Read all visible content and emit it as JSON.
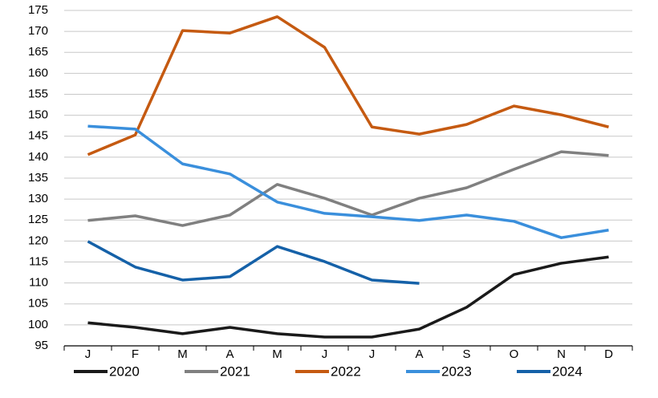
{
  "chart_data": {
    "type": "line",
    "categories": [
      "J",
      "F",
      "M",
      "A",
      "M",
      "J",
      "J",
      "A",
      "S",
      "O",
      "N",
      "D"
    ],
    "series": [
      {
        "name": "2020",
        "color": "#1a1a1a",
        "values": [
          100.5,
          99.4,
          97.9,
          99.4,
          97.9,
          97.1,
          97.1,
          99.0,
          104.2,
          112.0,
          114.7,
          116.2
        ]
      },
      {
        "name": "2021",
        "color": "#808080",
        "values": [
          124.9,
          126.0,
          123.7,
          126.2,
          133.5,
          130.2,
          126.2,
          130.2,
          132.7,
          137.1,
          141.3,
          140.4
        ]
      },
      {
        "name": "2022",
        "color": "#c55a11",
        "values": [
          140.6,
          145.3,
          170.2,
          169.6,
          173.5,
          166.2,
          147.2,
          145.5,
          147.8,
          152.2,
          150.1,
          147.2
        ]
      },
      {
        "name": "2023",
        "color": "#3a8fdc",
        "values": [
          147.4,
          146.7,
          138.4,
          136.0,
          129.3,
          126.6,
          125.8,
          124.9,
          126.2,
          124.7,
          120.8,
          122.6
        ]
      },
      {
        "name": "2024",
        "color": "#1561a8",
        "values": [
          119.9,
          113.8,
          110.7,
          111.5,
          118.7,
          115.1,
          110.7,
          109.9,
          null,
          null,
          null,
          null
        ]
      }
    ],
    "ylim": [
      95,
      175
    ],
    "yticks": [
      95,
      100,
      105,
      110,
      115,
      120,
      125,
      130,
      135,
      140,
      145,
      150,
      155,
      160,
      165,
      170,
      175
    ],
    "grid": true,
    "legend": "bottom"
  }
}
